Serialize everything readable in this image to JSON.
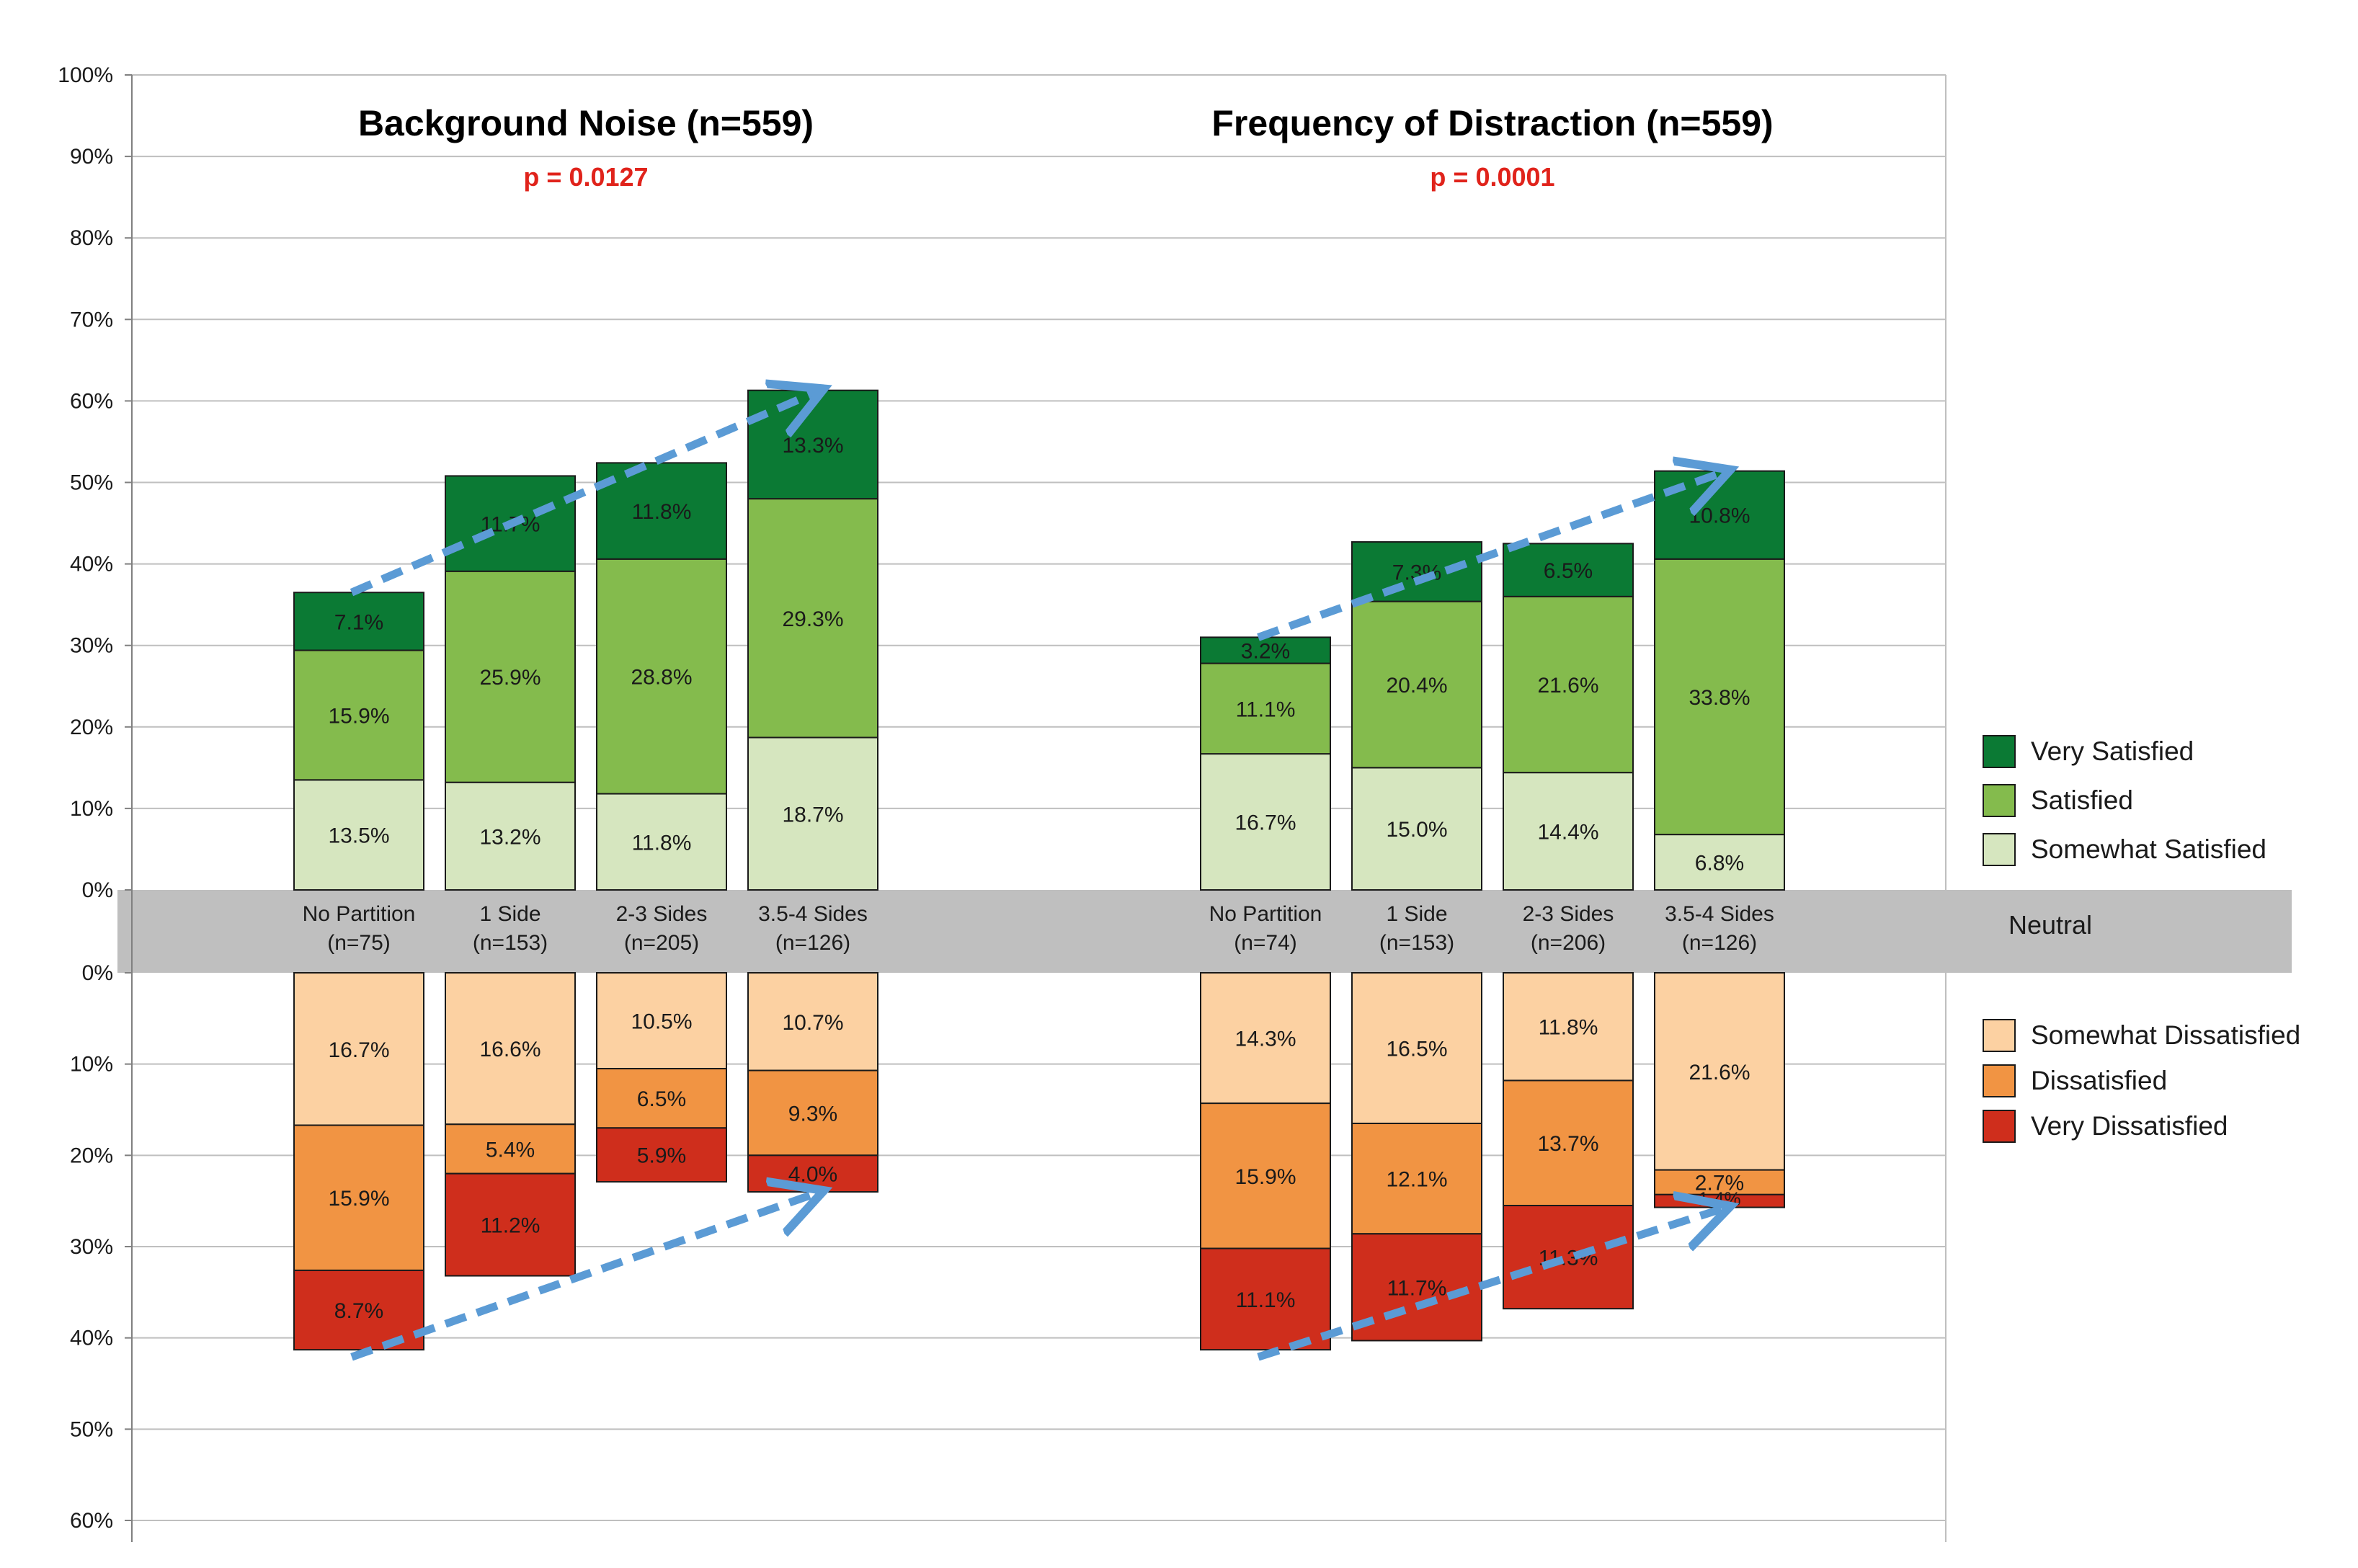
{
  "chart_data": {
    "type": "diverging stacked bar",
    "upper_axis": {
      "ticks": [
        "0%",
        "10%",
        "20%",
        "30%",
        "40%",
        "50%",
        "60%",
        "70%",
        "80%",
        "90%",
        "100%"
      ],
      "range": [
        0,
        100
      ]
    },
    "lower_axis": {
      "ticks": [
        "0%",
        "10%",
        "20%",
        "30%",
        "40%",
        "50%",
        "60%"
      ],
      "range": [
        0,
        60
      ]
    },
    "neutral_label": "Neutral",
    "gridlines": true,
    "legend_position": "right",
    "legend_satisfied": [
      {
        "name": "Very Satisfied",
        "color": "#0b7a34"
      },
      {
        "name": "Satisfied",
        "color": "#84bb4d"
      },
      {
        "name": "Somewhat Satisfied",
        "color": "#d6e6bf"
      }
    ],
    "legend_dissatisfied": [
      {
        "name": "Somewhat Dissatisfied",
        "color": "#fcd1a2"
      },
      {
        "name": "Dissatisfied",
        "color": "#f19443"
      },
      {
        "name": "Very Dissatisfied",
        "color": "#cf2e1c"
      }
    ],
    "panels": [
      {
        "title": "Background Noise (n=559)",
        "p_value": "p = 0.0127",
        "categories": [
          {
            "line1": "No Partition",
            "line2": "(n=75)"
          },
          {
            "line1": "1 Side",
            "line2": "(n=153)"
          },
          {
            "line1": "2-3 Sides",
            "line2": "(n=205)"
          },
          {
            "line1": "3.5-4 Sides",
            "line2": "(n=126)"
          }
        ],
        "satisfied_series": [
          {
            "name": "Somewhat Satisfied",
            "values": [
              13.5,
              13.2,
              11.8,
              18.7
            ],
            "labels": [
              "13.5%",
              "13.2%",
              "11.8%",
              "18.7%"
            ]
          },
          {
            "name": "Satisfied",
            "values": [
              15.9,
              25.9,
              28.8,
              29.3
            ],
            "labels": [
              "15.9%",
              "25.9%",
              "28.8%",
              "29.3%"
            ]
          },
          {
            "name": "Very Satisfied",
            "values": [
              7.1,
              11.7,
              11.8,
              13.3
            ],
            "labels": [
              "7.1%",
              "11.7%",
              "11.8%",
              "13.3%"
            ]
          }
        ],
        "dissatisfied_series": [
          {
            "name": "Somewhat Dissatisfied",
            "values": [
              16.7,
              16.6,
              10.5,
              10.7
            ],
            "labels": [
              "16.7%",
              "16.6%",
              "10.5%",
              "10.7%"
            ]
          },
          {
            "name": "Dissatisfied",
            "values": [
              15.9,
              5.4,
              6.5,
              9.3
            ],
            "labels": [
              "15.9%",
              "5.4%",
              "6.5%",
              "9.3%"
            ]
          },
          {
            "name": "Very Dissatisfied",
            "values": [
              8.7,
              11.2,
              5.9,
              4.0
            ],
            "labels": [
              "8.7%",
              "11.2%",
              "5.9%",
              "4.0%"
            ]
          }
        ]
      },
      {
        "title": "Frequency of Distraction (n=559)",
        "p_value": "p = 0.0001",
        "categories": [
          {
            "line1": "No Partition",
            "line2": "(n=74)"
          },
          {
            "line1": "1 Side",
            "line2": "(n=153)"
          },
          {
            "line1": "2-3 Sides",
            "line2": "(n=206)"
          },
          {
            "line1": "3.5-4 Sides",
            "line2": "(n=126)"
          }
        ],
        "satisfied_series": [
          {
            "name": "Somewhat Satisfied",
            "values": [
              16.7,
              15.0,
              14.4,
              6.8
            ],
            "labels": [
              "16.7%",
              "15.0%",
              "14.4%",
              "6.8%"
            ]
          },
          {
            "name": "Satisfied",
            "values": [
              11.1,
              20.4,
              21.6,
              33.8
            ],
            "labels": [
              "11.1%",
              "20.4%",
              "21.6%",
              "33.8%"
            ]
          },
          {
            "name": "Very Satisfied",
            "values": [
              3.2,
              7.3,
              6.5,
              10.8
            ],
            "labels": [
              "3.2%",
              "7.3%",
              "6.5%",
              "10.8%"
            ]
          }
        ],
        "dissatisfied_series": [
          {
            "name": "Somewhat Dissatisfied",
            "values": [
              14.3,
              16.5,
              11.8,
              21.6
            ],
            "labels": [
              "14.3%",
              "16.5%",
              "11.8%",
              "21.6%"
            ]
          },
          {
            "name": "Dissatisfied",
            "values": [
              15.9,
              12.1,
              13.7,
              2.7
            ],
            "labels": [
              "15.9%",
              "12.1%",
              "13.7%",
              "2.7%"
            ]
          },
          {
            "name": "Very Dissatisfied",
            "values": [
              11.1,
              11.7,
              11.3,
              1.4
            ],
            "labels": [
              "11.1%",
              "11.7%",
              "11.3%",
              "1.4%"
            ]
          }
        ]
      }
    ]
  }
}
